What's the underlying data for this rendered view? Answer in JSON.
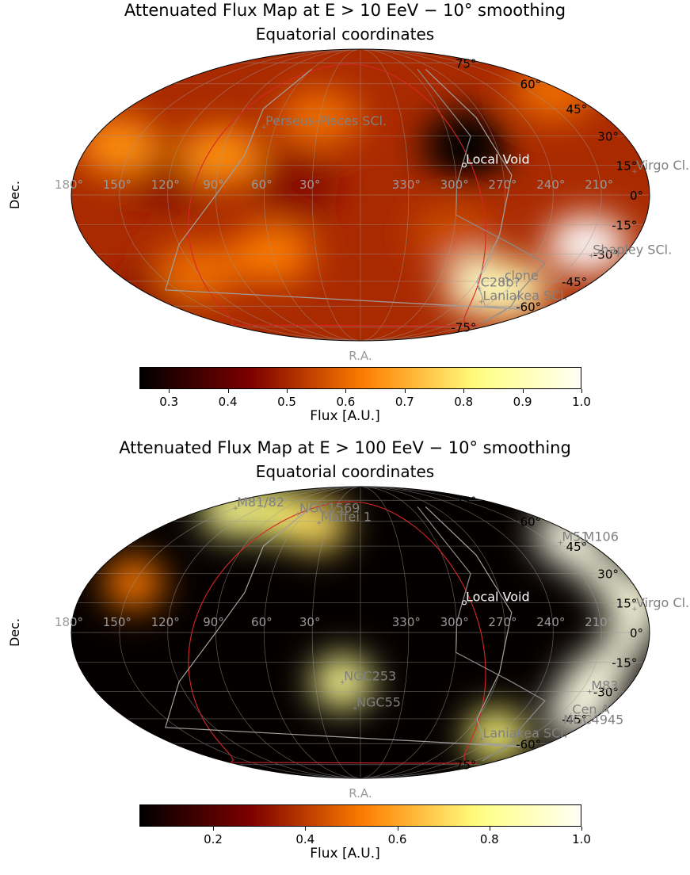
{
  "chart_data": [
    {
      "type": "heatmap",
      "title": "Attenuated Flux Map at E > 10 EeV − 10° smoothing",
      "subtitle": "Equatorial coordinates",
      "projection": "mollweide",
      "xlabel": "R.A.",
      "ylabel": "Dec.",
      "ra_ticks": [
        "330°",
        "300°",
        "270°",
        "240°",
        "210°",
        "180°",
        "150°",
        "120°",
        "90°",
        "60°",
        "30°"
      ],
      "dec_ticks": [
        "75°",
        "60°",
        "45°",
        "30°",
        "15°",
        "0°",
        "-15°",
        "-30°",
        "-45°",
        "-60°",
        "-75°"
      ],
      "colorbar": {
        "label": "Flux [A.U.]",
        "range": [
          0.25,
          1.0
        ],
        "ticks": [
          "0.3",
          "0.4",
          "0.5",
          "0.6",
          "0.7",
          "0.8",
          "0.9",
          "1.0"
        ],
        "tick_values": [
          0.3,
          0.4,
          0.5,
          0.6,
          0.7,
          0.8,
          0.9,
          1.0
        ],
        "colormap": "afmhot"
      },
      "annotations": [
        {
          "text": "Local Void",
          "ra": 294,
          "dec": 15,
          "color": "#ffffff"
        },
        {
          "text": "Virgo Cl.",
          "ra": 187,
          "dec": 12,
          "color": "#808080"
        },
        {
          "text": "Perseus-Pisces SCl.",
          "ra": 68,
          "dec": 35,
          "color": "#808080"
        },
        {
          "text": "Shapley SCl.",
          "ra": 202,
          "dec": -31,
          "color": "#808080"
        },
        {
          "text": "clone",
          "ra": 250,
          "dec": -45,
          "color": "#808080"
        },
        {
          "text": "C28b?",
          "ra": 264,
          "dec": -49,
          "color": "#808080"
        },
        {
          "text": "Laniakea SCl.",
          "ra": 250,
          "dec": -57,
          "color": "#808080"
        }
      ],
      "hotspots": [
        {
          "ra": 210,
          "dec": -25,
          "flux": 1.0
        },
        {
          "ra": 260,
          "dec": -48,
          "flux": 0.95
        },
        {
          "ra": 240,
          "dec": -50,
          "flux": 0.9
        },
        {
          "ra": 160,
          "dec": 25,
          "flux": 0.65
        },
        {
          "ra": 90,
          "dec": 20,
          "flux": 0.65
        },
        {
          "ra": 60,
          "dec": -30,
          "flux": 0.62
        },
        {
          "ra": 120,
          "dec": -40,
          "flux": 0.6
        },
        {
          "ra": 190,
          "dec": 55,
          "flux": 0.6
        },
        {
          "ra": 30,
          "dec": 40,
          "flux": 0.6
        },
        {
          "ra": 300,
          "dec": -20,
          "flux": 0.55
        }
      ],
      "coldspots": [
        {
          "ra": 290,
          "dec": 25,
          "flux": 0.25
        },
        {
          "ra": 180,
          "dec": -55,
          "flux": 0.45
        },
        {
          "ra": 120,
          "dec": 10,
          "flux": 0.45
        },
        {
          "ra": 40,
          "dec": 5,
          "flux": 0.45
        }
      ],
      "base_flux": 0.5
    },
    {
      "type": "heatmap",
      "title": "Attenuated Flux Map at E > 100 EeV − 10° smoothing",
      "subtitle": "Equatorial coordinates",
      "projection": "mollweide",
      "xlabel": "R.A.",
      "ylabel": "Dec.",
      "ra_ticks": [
        "330°",
        "300°",
        "270°",
        "240°",
        "210°",
        "180°",
        "150°",
        "120°",
        "90°",
        "60°",
        "30°"
      ],
      "dec_ticks": [
        "75°",
        "60°",
        "45°",
        "30°",
        "15°",
        "0°",
        "-15°",
        "-30°",
        "-45°",
        "-60°",
        "-75°"
      ],
      "colorbar": {
        "label": "Flux [A.U.]",
        "range": [
          0.04,
          1.0
        ],
        "ticks": [
          "0.2",
          "0.4",
          "0.6",
          "0.8",
          "1.0"
        ],
        "tick_values": [
          0.2,
          0.4,
          0.6,
          0.8,
          1.0
        ],
        "colormap": "afmhot"
      },
      "annotations": [
        {
          "text": "Local Void",
          "ra": 294,
          "dec": 15,
          "color": "#ffffff"
        },
        {
          "text": "Virgo Cl.",
          "ra": 187,
          "dec": 12,
          "color": "#808080"
        },
        {
          "text": "M81/82",
          "ra": 149,
          "dec": 69,
          "color": "#808080"
        },
        {
          "text": "NGC1569",
          "ra": 67,
          "dec": 65,
          "color": "#808080"
        },
        {
          "text": "Maffei 1",
          "ra": 39,
          "dec": 59,
          "color": "#808080"
        },
        {
          "text": "M51",
          "ra": 202,
          "dec": 47,
          "color": "#808080"
        },
        {
          "text": "M106",
          "ra": 185,
          "dec": 47,
          "color": "#808080"
        },
        {
          "text": "M83",
          "ra": 204,
          "dec": -30,
          "color": "#808080"
        },
        {
          "text": "Cen A",
          "ra": 201,
          "dec": -43,
          "color": "#808080"
        },
        {
          "text": "NGC4945",
          "ra": 197,
          "dec": -49,
          "color": "#808080"
        },
        {
          "text": "Laniakea SCl.",
          "ra": 250,
          "dec": -57,
          "color": "#808080"
        },
        {
          "text": "NGC253",
          "ra": 12,
          "dec": -25,
          "color": "#808080"
        },
        {
          "text": "NGC55",
          "ra": 4,
          "dec": -39,
          "color": "#808080"
        }
      ],
      "hotspots": [
        {
          "ra": 190,
          "dec": 50,
          "flux": 1.0
        },
        {
          "ra": 185,
          "dec": 15,
          "flux": 0.9
        },
        {
          "ra": 200,
          "dec": -40,
          "flux": 1.0
        },
        {
          "ra": 205,
          "dec": -25,
          "flux": 0.95
        },
        {
          "ra": 150,
          "dec": 68,
          "flux": 0.8
        },
        {
          "ra": 90,
          "dec": 65,
          "flux": 0.75
        },
        {
          "ra": 40,
          "dec": 58,
          "flux": 0.7
        },
        {
          "ra": 240,
          "dec": -55,
          "flux": 0.75
        },
        {
          "ra": 12,
          "dec": -25,
          "flux": 0.8
        },
        {
          "ra": 150,
          "dec": 25,
          "flux": 0.5
        }
      ],
      "coldspots": [],
      "base_flux": 0.05
    }
  ]
}
